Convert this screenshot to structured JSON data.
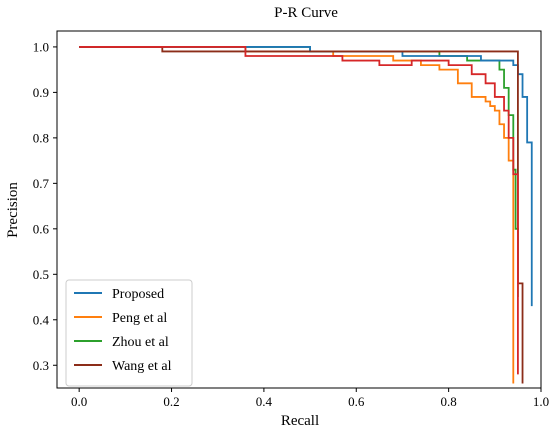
{
  "chart_data": {
    "type": "line",
    "title": "P-R Curve",
    "xlabel": "Recall",
    "ylabel": "Precision",
    "xlim": [
      -0.048,
      1.0
    ],
    "ylim": [
      0.25,
      1.035
    ],
    "xticks": [
      "0.0",
      "0.2",
      "0.4",
      "0.6",
      "0.8",
      "1.0"
    ],
    "yticks": [
      "0.3",
      "0.4",
      "0.5",
      "0.6",
      "0.7",
      "0.8",
      "0.9",
      "1.0"
    ],
    "grid": false,
    "legend_position": "lower-left",
    "series": [
      {
        "name": "Proposed",
        "color": "#1f77b4",
        "x": [
          0.0,
          0.18,
          0.18,
          0.5,
          0.5,
          0.62,
          0.62,
          0.7,
          0.7,
          0.8,
          0.8,
          0.87,
          0.87,
          0.93,
          0.93,
          0.94,
          0.94,
          0.95,
          0.95,
          0.96,
          0.96,
          0.97,
          0.97,
          0.98,
          0.98
        ],
        "y": [
          1.0,
          1.0,
          1.0,
          1.0,
          0.99,
          0.99,
          0.99,
          0.99,
          0.98,
          0.98,
          0.98,
          0.98,
          0.97,
          0.97,
          0.97,
          0.97,
          0.96,
          0.96,
          0.94,
          0.94,
          0.89,
          0.89,
          0.79,
          0.79,
          0.43
        ]
      },
      {
        "name": "Peng et al",
        "color": "#ff7f0e",
        "x": [
          0.0,
          0.36,
          0.36,
          0.55,
          0.55,
          0.68,
          0.68,
          0.74,
          0.74,
          0.78,
          0.78,
          0.82,
          0.82,
          0.85,
          0.85,
          0.88,
          0.88,
          0.89,
          0.89,
          0.9,
          0.9,
          0.91,
          0.91,
          0.92,
          0.92,
          0.93,
          0.93,
          0.94,
          0.94
        ],
        "y": [
          1.0,
          1.0,
          0.99,
          0.99,
          0.98,
          0.98,
          0.97,
          0.97,
          0.96,
          0.96,
          0.95,
          0.95,
          0.92,
          0.92,
          0.89,
          0.89,
          0.88,
          0.88,
          0.87,
          0.87,
          0.86,
          0.86,
          0.83,
          0.83,
          0.8,
          0.8,
          0.75,
          0.75,
          0.26
        ]
      },
      {
        "name": "Zhou et al",
        "color": "#2ca02c",
        "x": [
          0.0,
          0.5,
          0.5,
          0.78,
          0.78,
          0.84,
          0.84,
          0.91,
          0.91,
          0.92,
          0.92,
          0.93,
          0.93,
          0.94,
          0.94,
          0.945,
          0.945,
          0.95,
          0.95
        ],
        "y": [
          1.0,
          1.0,
          0.99,
          0.99,
          0.98,
          0.98,
          0.97,
          0.97,
          0.95,
          0.95,
          0.91,
          0.91,
          0.85,
          0.85,
          0.73,
          0.73,
          0.6,
          0.6,
          0.45
        ]
      },
      {
        "name": "Wang et al",
        "color": "#8c2d19",
        "x": [
          0.0,
          0.18,
          0.18,
          0.95,
          0.95,
          0.96,
          0.96
        ],
        "y": [
          1.0,
          1.0,
          0.99,
          0.99,
          0.48,
          0.48,
          0.26
        ]
      },
      {
        "name": "",
        "color": "#d62728",
        "x": [
          0.0,
          0.36,
          0.36,
          0.57,
          0.57,
          0.65,
          0.65,
          0.72,
          0.72,
          0.8,
          0.8,
          0.85,
          0.85,
          0.88,
          0.88,
          0.9,
          0.9,
          0.92,
          0.92,
          0.93,
          0.93,
          0.94,
          0.94,
          0.95,
          0.95
        ],
        "y": [
          1.0,
          1.0,
          0.98,
          0.98,
          0.97,
          0.97,
          0.96,
          0.96,
          0.97,
          0.97,
          0.96,
          0.96,
          0.94,
          0.94,
          0.92,
          0.92,
          0.89,
          0.89,
          0.86,
          0.86,
          0.8,
          0.8,
          0.72,
          0.72,
          0.28
        ]
      }
    ]
  }
}
